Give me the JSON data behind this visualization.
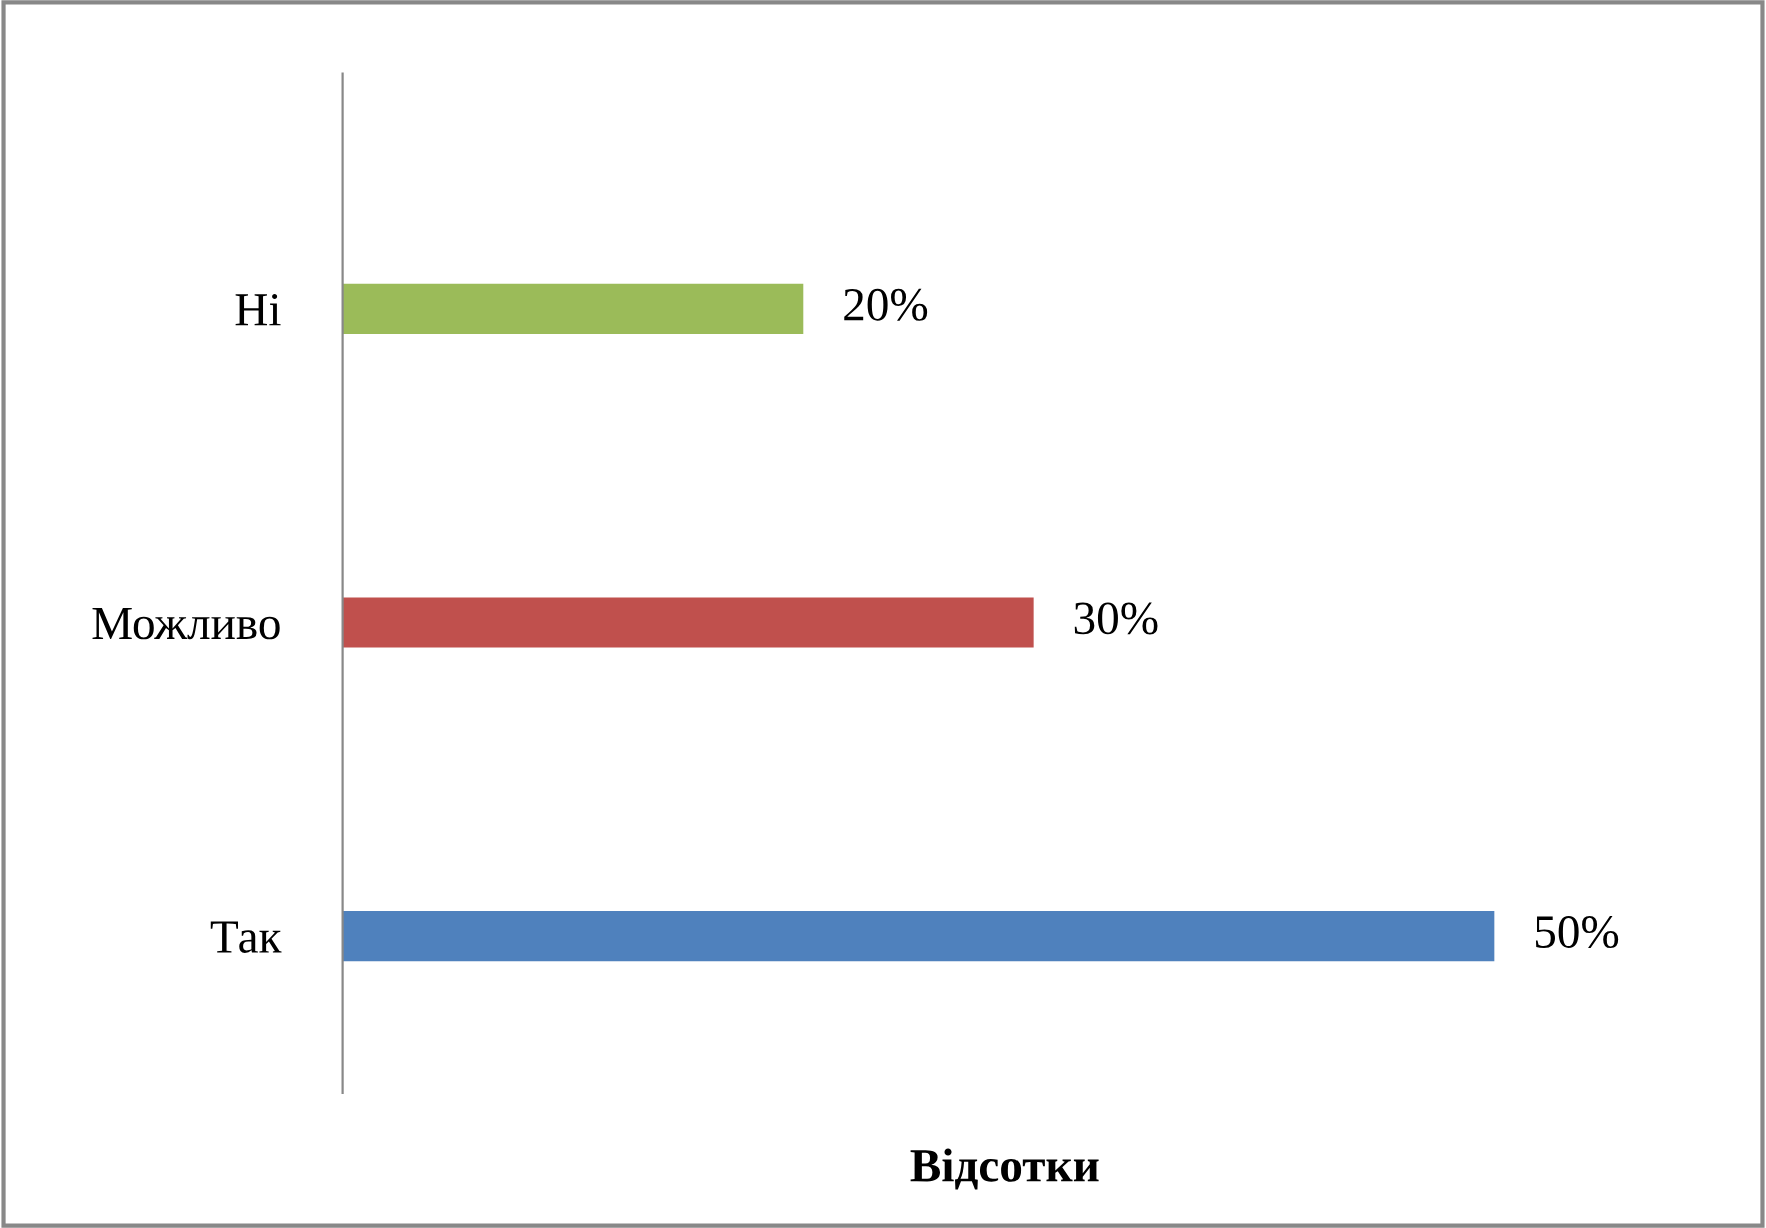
{
  "chart_data": {
    "type": "bar",
    "orientation": "horizontal",
    "xlabel": "Відсотки",
    "categories": [
      "Ні",
      "Можливо",
      "Так"
    ],
    "values": [
      20,
      30,
      50
    ],
    "colors": [
      "#9bbb59",
      "#c0504d",
      "#4f81bd"
    ],
    "value_labels": [
      "20%",
      "30%",
      "50%"
    ],
    "grid": false,
    "legend": false
  }
}
